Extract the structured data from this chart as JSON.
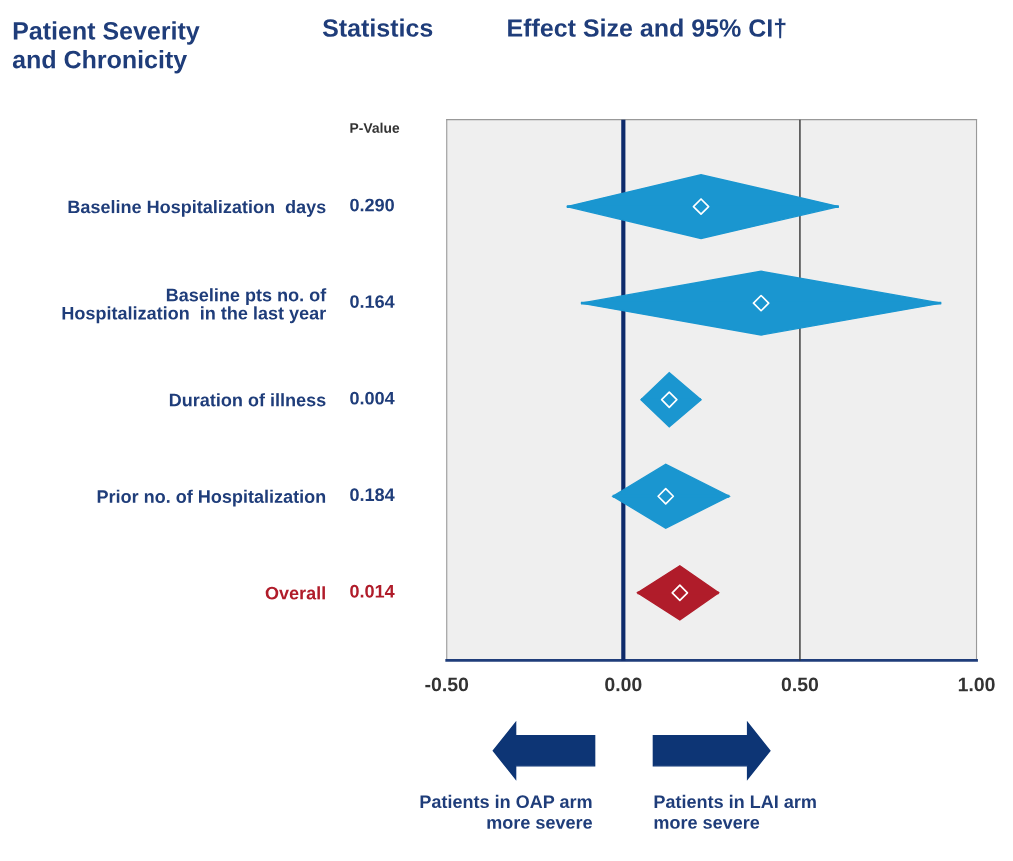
{
  "chart_data": {
    "type": "scatter",
    "orientation": "horizontal",
    "marker": "diamond",
    "title": "Effect Size and 95% CI†",
    "categories": [
      "Baseline Hospitalization  days",
      "Baseline pts no. of\nHospitalization  in the last year",
      "Duration of illness",
      "Prior no. of Hospitalization",
      "Overall"
    ],
    "y2_categories": [
      "0.290",
      "0.164",
      "0.004",
      "0.184",
      "0.014"
    ],
    "values": [
      0.22,
      0.39,
      0.13,
      0.12,
      0.16
    ],
    "errors": [
      [
        -0.16,
        0.61
      ],
      [
        -0.12,
        0.9
      ],
      [
        0.05,
        0.22
      ],
      [
        -0.03,
        0.3
      ],
      [
        0.04,
        0.27
      ]
    ],
    "colors": [
      "#1a96d0",
      "#1a96d0",
      "#1a96d0",
      "#1a96d0",
      "#b01c2a"
    ],
    "xlim": [
      -0.5,
      1.0
    ],
    "xticks": [
      {
        "value": -0.5,
        "label": "-0.50"
      },
      {
        "value": 0,
        "label": "0.00"
      },
      {
        "value": 0.5,
        "label": "0.50"
      },
      {
        "value": 1.0,
        "label": "1.00"
      }
    ],
    "ref_lines": [
      {
        "axis": "x",
        "value": 0,
        "color": "#0d2a6b"
      },
      {
        "axis": "x",
        "value": 0.5,
        "color": "#333333"
      }
    ],
    "annotations": [
      "Patient Severity\nand Chronicity",
      "Statistics",
      "P-Value",
      "Patients in OAP arm\nmore severe",
      "Patients in LAI arm\nmore severe"
    ]
  }
}
